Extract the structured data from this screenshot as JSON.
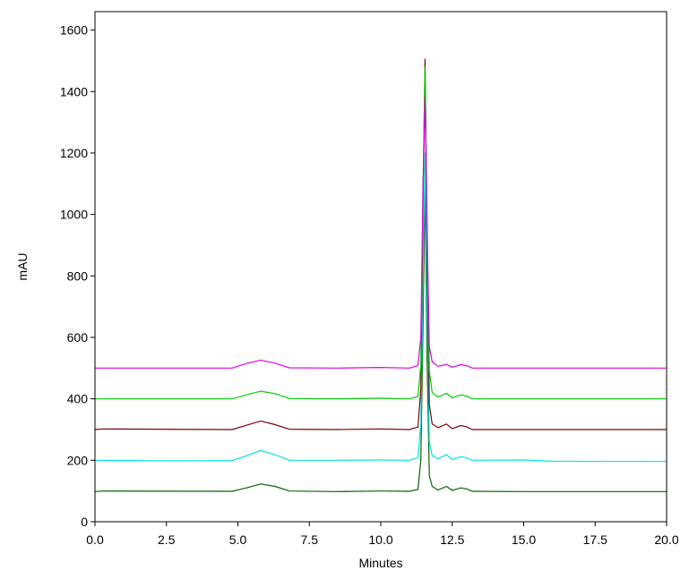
{
  "chart_data": {
    "type": "line",
    "xlabel": "Minutes",
    "ylabel": "mAU",
    "xlim": [
      0,
      20
    ],
    "ylim": [
      0,
      1660
    ],
    "x_ticks": [
      0.0,
      2.5,
      5.0,
      7.5,
      10.0,
      12.5,
      15.0,
      17.5,
      20.0
    ],
    "x_tick_labels": [
      "0.0",
      "2.5",
      "5.0",
      "7.5",
      "10.0",
      "12.5",
      "15.0",
      "17.5",
      "20.0"
    ],
    "y_ticks": [
      0,
      200,
      400,
      600,
      800,
      1000,
      1200,
      1400,
      1600
    ],
    "y_tick_labels": [
      "0",
      "200",
      "400",
      "600",
      "800",
      "1000",
      "1200",
      "1400",
      "1600"
    ],
    "grid": false,
    "series": [
      {
        "color": "#006400",
        "x": [
          0.0,
          0.3,
          4.8,
          5.3,
          5.8,
          6.3,
          6.8,
          8.5,
          10.0,
          11.0,
          11.3,
          11.4,
          11.48,
          11.55,
          11.62,
          11.7,
          11.8,
          12.0,
          12.3,
          12.5,
          12.8,
          13.0,
          13.2,
          15.0,
          20.0
        ],
        "y": [
          98,
          100,
          99,
          110,
          123,
          115,
          100,
          98,
          100,
          99,
          105,
          200,
          650,
          1100,
          520,
          150,
          115,
          103,
          115,
          102,
          110,
          107,
          99,
          98,
          98
        ]
      },
      {
        "color": "#00E5E5",
        "x": [
          0.0,
          2.7,
          4.8,
          5.3,
          5.8,
          6.3,
          6.8,
          8.5,
          10.0,
          11.0,
          11.3,
          11.4,
          11.48,
          11.55,
          11.62,
          11.7,
          11.8,
          12.0,
          12.3,
          12.5,
          12.8,
          13.0,
          13.2,
          15.0,
          16.0,
          20.0
        ],
        "y": [
          200,
          198,
          199,
          215,
          232,
          218,
          200,
          200,
          201,
          200,
          208,
          320,
          800,
          1200,
          700,
          260,
          215,
          205,
          218,
          202,
          212,
          208,
          200,
          201,
          197,
          196
        ]
      },
      {
        "color": "#800000",
        "x": [
          0.0,
          0.3,
          4.8,
          5.3,
          5.8,
          6.3,
          6.8,
          8.5,
          10.0,
          11.0,
          11.3,
          11.4,
          11.48,
          11.55,
          11.62,
          11.7,
          11.8,
          12.0,
          12.3,
          12.5,
          12.8,
          13.0,
          13.2,
          15.0,
          20.0
        ],
        "y": [
          300,
          302,
          300,
          314,
          328,
          316,
          301,
          300,
          302,
          300,
          308,
          430,
          1050,
          1505,
          900,
          380,
          318,
          306,
          318,
          303,
          313,
          309,
          300,
          300,
          300
        ]
      },
      {
        "color": "#00CC00",
        "x": [
          0.0,
          4.8,
          5.3,
          5.8,
          6.3,
          6.8,
          8.5,
          10.0,
          11.0,
          11.3,
          11.4,
          11.48,
          11.55,
          11.62,
          11.7,
          11.8,
          12.0,
          12.3,
          12.5,
          12.8,
          13.0,
          13.2,
          15.0,
          20.0
        ],
        "y": [
          400,
          400,
          413,
          425,
          417,
          401,
          400,
          402,
          400,
          408,
          510,
          1100,
          1480,
          980,
          490,
          420,
          406,
          418,
          403,
          413,
          409,
          400,
          400,
          400
        ]
      },
      {
        "color": "#E000E0",
        "x": [
          0.0,
          4.8,
          5.3,
          5.8,
          6.3,
          6.8,
          8.5,
          10.0,
          11.0,
          11.3,
          11.4,
          11.48,
          11.55,
          11.62,
          11.7,
          11.8,
          12.0,
          12.3,
          12.5,
          12.8,
          13.0,
          13.2,
          15.0,
          20.0
        ],
        "y": [
          500,
          500,
          515,
          526,
          516,
          501,
          500,
          502,
          500,
          508,
          600,
          1100,
          1380,
          930,
          570,
          520,
          506,
          512,
          503,
          511,
          508,
          500,
          500,
          500
        ]
      }
    ]
  }
}
